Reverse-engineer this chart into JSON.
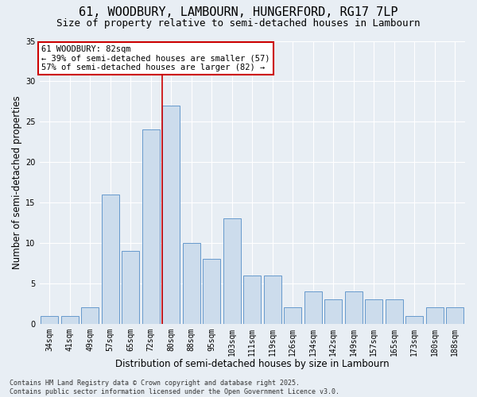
{
  "title": "61, WOODBURY, LAMBOURN, HUNGERFORD, RG17 7LP",
  "subtitle": "Size of property relative to semi-detached houses in Lambourn",
  "xlabel": "Distribution of semi-detached houses by size in Lambourn",
  "ylabel": "Number of semi-detached properties",
  "categories": [
    "34sqm",
    "41sqm",
    "49sqm",
    "57sqm",
    "65sqm",
    "72sqm",
    "80sqm",
    "88sqm",
    "95sqm",
    "103sqm",
    "111sqm",
    "119sqm",
    "126sqm",
    "134sqm",
    "142sqm",
    "149sqm",
    "157sqm",
    "165sqm",
    "173sqm",
    "180sqm",
    "188sqm"
  ],
  "values": [
    1,
    1,
    2,
    16,
    9,
    24,
    27,
    10,
    8,
    13,
    6,
    6,
    2,
    4,
    3,
    4,
    3,
    3,
    1,
    2,
    2
  ],
  "bar_color": "#ccdcec",
  "bar_edge_color": "#6699cc",
  "highlight_index": 6,
  "red_line_color": "#cc0000",
  "ylim": [
    0,
    35
  ],
  "yticks": [
    0,
    5,
    10,
    15,
    20,
    25,
    30,
    35
  ],
  "annotation_text": "61 WOODBURY: 82sqm\n← 39% of semi-detached houses are smaller (57)\n57% of semi-detached houses are larger (82) →",
  "annotation_box_color": "#ffffff",
  "annotation_box_edge": "#cc0000",
  "footer_line1": "Contains HM Land Registry data © Crown copyright and database right 2025.",
  "footer_line2": "Contains public sector information licensed under the Open Government Licence v3.0.",
  "background_color": "#e8eef4",
  "grid_color": "#ffffff",
  "title_fontsize": 11,
  "subtitle_fontsize": 9,
  "axis_label_fontsize": 8.5,
  "tick_fontsize": 7,
  "annotation_fontsize": 7.5,
  "footer_fontsize": 6
}
